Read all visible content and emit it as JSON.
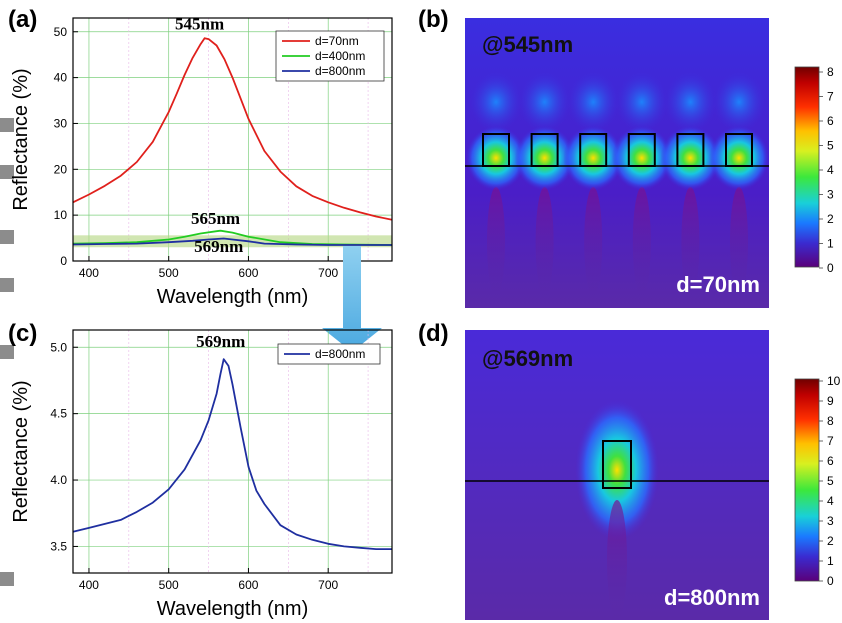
{
  "panels": {
    "a": "(a)",
    "b": "(b)",
    "c": "(c)",
    "d": "(d)"
  },
  "chart_data": [
    {
      "type": "line",
      "xlabel": "Wavelength (nm)",
      "ylabel": "Reflectance (%)",
      "xlim": [
        380,
        780
      ],
      "ylim": [
        0,
        53
      ],
      "xticks": [
        400,
        500,
        600,
        700
      ],
      "yticks": [
        0,
        10,
        20,
        30,
        40,
        50
      ],
      "grid": true,
      "legend_position": "top-right",
      "series": [
        {
          "name": "d=70nm",
          "color": "#e0201c",
          "x": [
            380,
            400,
            420,
            440,
            460,
            480,
            500,
            510,
            520,
            530,
            540,
            545,
            550,
            560,
            570,
            580,
            590,
            600,
            620,
            640,
            660,
            680,
            700,
            720,
            740,
            760,
            780
          ],
          "y": [
            12.8,
            14.5,
            16.4,
            18.6,
            21.6,
            26.0,
            32.5,
            36.5,
            40.6,
            44.3,
            47.3,
            48.6,
            48.4,
            47.0,
            44.0,
            40.0,
            35.5,
            31.0,
            24.0,
            19.5,
            16.3,
            14.2,
            12.8,
            11.6,
            10.6,
            9.7,
            9.0
          ]
        },
        {
          "name": "d=400nm",
          "color": "#22cc22",
          "x": [
            380,
            420,
            460,
            500,
            520,
            540,
            560,
            565,
            580,
            600,
            640,
            680,
            720,
            780
          ],
          "y": [
            3.8,
            3.9,
            4.1,
            4.7,
            5.3,
            6.0,
            6.5,
            6.6,
            6.2,
            5.3,
            4.1,
            3.7,
            3.6,
            3.5
          ]
        },
        {
          "name": "d=800nm",
          "color": "#1f2fa0",
          "x": [
            380,
            420,
            460,
            500,
            530,
            550,
            569,
            580,
            600,
            620,
            660,
            700,
            780
          ],
          "y": [
            3.6,
            3.7,
            3.8,
            4.1,
            4.4,
            4.7,
            4.9,
            4.7,
            4.3,
            3.8,
            3.6,
            3.5,
            3.5
          ]
        }
      ],
      "annotations": [
        "545nm",
        "565nm",
        "569nm"
      ],
      "highlight_band": {
        "ymin": 3,
        "ymax": 5.6
      }
    },
    {
      "type": "line",
      "xlabel": "Wavelength (nm)",
      "ylabel": "Reflectance (%)",
      "xlim": [
        380,
        780
      ],
      "ylim": [
        3.3,
        5.13
      ],
      "xticks": [
        400,
        500,
        600,
        700
      ],
      "yticks": [
        3.5,
        4.0,
        4.5,
        5.0
      ],
      "yticklabels": [
        "3.5",
        "4.0",
        "4.5",
        "5.0"
      ],
      "grid": true,
      "legend_position": "top-right",
      "series": [
        {
          "name": "d=800nm",
          "color": "#1f2fa0",
          "x": [
            380,
            400,
            420,
            440,
            460,
            480,
            500,
            520,
            540,
            550,
            560,
            565,
            569,
            575,
            580,
            590,
            600,
            610,
            620,
            640,
            660,
            680,
            700,
            720,
            740,
            760,
            780
          ],
          "y": [
            3.61,
            3.64,
            3.67,
            3.7,
            3.76,
            3.83,
            3.93,
            4.08,
            4.3,
            4.45,
            4.65,
            4.8,
            4.91,
            4.86,
            4.72,
            4.4,
            4.1,
            3.92,
            3.82,
            3.66,
            3.59,
            3.55,
            3.52,
            3.5,
            3.49,
            3.48,
            3.48
          ]
        }
      ],
      "annotations": [
        "569nm"
      ]
    },
    {
      "type": "heatmap",
      "label_top": "@545nm",
      "label_bottom": "d=70nm",
      "colorbar_ticks": [
        "0",
        "1",
        "2",
        "3",
        "4",
        "5",
        "6",
        "7",
        "8"
      ]
    },
    {
      "type": "heatmap",
      "label_top": "@569nm",
      "label_bottom": "d=800nm",
      "colorbar_ticks": [
        "0",
        "1",
        "2",
        "3",
        "4",
        "5",
        "6",
        "7",
        "8",
        "9",
        "10"
      ]
    }
  ]
}
